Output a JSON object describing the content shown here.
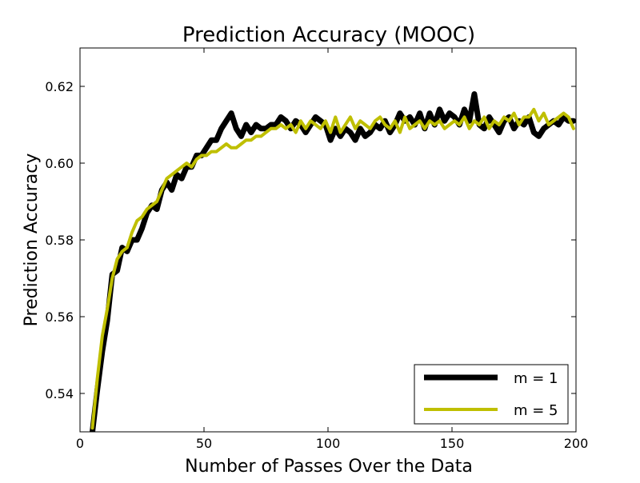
{
  "chart_data": {
    "type": "line",
    "title": "Prediction Accuracy (MOOC)",
    "xlabel": "Number of Passes Over the Data",
    "ylabel": "Prediction Accuracy",
    "xlim": [
      0,
      200
    ],
    "ylim": [
      0.53,
      0.63
    ],
    "xticks": [
      0,
      50,
      100,
      150,
      200
    ],
    "xtick_labels": [
      "0",
      "50",
      "100",
      "150",
      "200"
    ],
    "yticks": [
      0.54,
      0.56,
      0.58,
      0.6,
      0.62
    ],
    "ytick_labels": [
      "0.54",
      "0.56",
      "0.58",
      "0.60",
      "0.62"
    ],
    "grid": false,
    "legend_position": "lower-right",
    "series": [
      {
        "name": "m = 1",
        "color": "#000000",
        "x": [
          5,
          7,
          9,
          11,
          13,
          15,
          17,
          19,
          21,
          23,
          25,
          27,
          29,
          31,
          33,
          35,
          37,
          39,
          41,
          43,
          45,
          47,
          49,
          51,
          53,
          55,
          57,
          59,
          61,
          63,
          65,
          67,
          69,
          71,
          73,
          75,
          77,
          79,
          81,
          83,
          85,
          87,
          89,
          91,
          93,
          95,
          97,
          99,
          101,
          103,
          105,
          107,
          109,
          111,
          113,
          115,
          117,
          119,
          121,
          123,
          125,
          127,
          129,
          131,
          133,
          135,
          137,
          139,
          141,
          143,
          145,
          147,
          149,
          151,
          153,
          155,
          157,
          159,
          161,
          163,
          165,
          167,
          169,
          171,
          173,
          175,
          177,
          179,
          181,
          183,
          185,
          187,
          189,
          191,
          193,
          195,
          197,
          199
        ],
        "values": [
          0.53,
          0.541,
          0.551,
          0.559,
          0.571,
          0.572,
          0.578,
          0.577,
          0.58,
          0.58,
          0.583,
          0.587,
          0.589,
          0.588,
          0.593,
          0.595,
          0.593,
          0.597,
          0.596,
          0.599,
          0.599,
          0.602,
          0.602,
          0.604,
          0.606,
          0.606,
          0.609,
          0.611,
          0.613,
          0.609,
          0.607,
          0.61,
          0.608,
          0.61,
          0.609,
          0.609,
          0.61,
          0.61,
          0.612,
          0.611,
          0.609,
          0.611,
          0.61,
          0.608,
          0.61,
          0.612,
          0.611,
          0.61,
          0.606,
          0.609,
          0.607,
          0.609,
          0.608,
          0.606,
          0.609,
          0.607,
          0.608,
          0.61,
          0.609,
          0.611,
          0.608,
          0.61,
          0.613,
          0.611,
          0.612,
          0.61,
          0.613,
          0.609,
          0.613,
          0.61,
          0.614,
          0.611,
          0.613,
          0.612,
          0.61,
          0.614,
          0.611,
          0.618,
          0.61,
          0.609,
          0.612,
          0.61,
          0.608,
          0.611,
          0.612,
          0.609,
          0.611,
          0.61,
          0.612,
          0.608,
          0.607,
          0.609,
          0.61,
          0.611,
          0.61,
          0.612,
          0.611,
          0.611
        ]
      },
      {
        "name": "m = 5",
        "color": "#bfbf00",
        "x": [
          5,
          7,
          9,
          11,
          13,
          15,
          17,
          19,
          21,
          23,
          25,
          27,
          29,
          31,
          33,
          35,
          37,
          39,
          41,
          43,
          45,
          47,
          49,
          51,
          53,
          55,
          57,
          59,
          61,
          63,
          65,
          67,
          69,
          71,
          73,
          75,
          77,
          79,
          81,
          83,
          85,
          87,
          89,
          91,
          93,
          95,
          97,
          99,
          101,
          103,
          105,
          107,
          109,
          111,
          113,
          115,
          117,
          119,
          121,
          123,
          125,
          127,
          129,
          131,
          133,
          135,
          137,
          139,
          141,
          143,
          145,
          147,
          149,
          151,
          153,
          155,
          157,
          159,
          161,
          163,
          165,
          167,
          169,
          171,
          173,
          175,
          177,
          179,
          181,
          183,
          185,
          187,
          189,
          191,
          193,
          195,
          197,
          199
        ],
        "values": [
          0.531,
          0.544,
          0.555,
          0.562,
          0.57,
          0.575,
          0.577,
          0.578,
          0.582,
          0.585,
          0.586,
          0.588,
          0.589,
          0.59,
          0.593,
          0.596,
          0.597,
          0.598,
          0.599,
          0.6,
          0.599,
          0.601,
          0.602,
          0.602,
          0.603,
          0.603,
          0.604,
          0.605,
          0.604,
          0.604,
          0.605,
          0.606,
          0.606,
          0.607,
          0.607,
          0.608,
          0.609,
          0.609,
          0.61,
          0.609,
          0.61,
          0.608,
          0.611,
          0.609,
          0.611,
          0.61,
          0.609,
          0.611,
          0.608,
          0.612,
          0.608,
          0.61,
          0.612,
          0.609,
          0.611,
          0.61,
          0.609,
          0.611,
          0.612,
          0.61,
          0.609,
          0.611,
          0.608,
          0.612,
          0.609,
          0.61,
          0.611,
          0.609,
          0.611,
          0.61,
          0.611,
          0.609,
          0.61,
          0.611,
          0.61,
          0.612,
          0.609,
          0.611,
          0.61,
          0.612,
          0.609,
          0.611,
          0.61,
          0.612,
          0.611,
          0.613,
          0.61,
          0.612,
          0.612,
          0.614,
          0.611,
          0.613,
          0.61,
          0.611,
          0.612,
          0.613,
          0.612,
          0.609
        ]
      }
    ]
  }
}
